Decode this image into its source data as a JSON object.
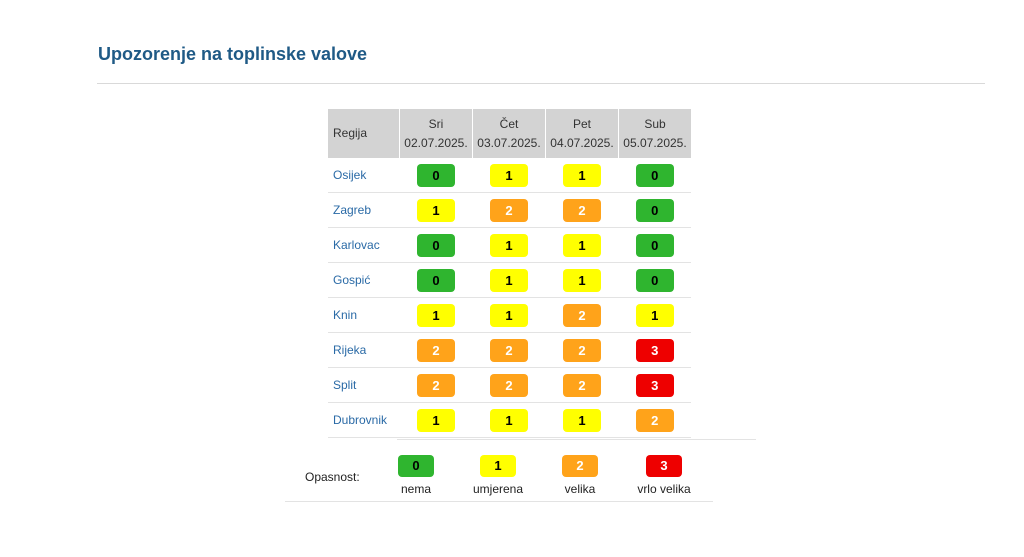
{
  "title": "Upozorenje na toplinske valove",
  "table": {
    "region_header": "Regija",
    "days": [
      {
        "day": "Sri",
        "date": "02.07.2025."
      },
      {
        "day": "Čet",
        "date": "03.07.2025."
      },
      {
        "day": "Pet",
        "date": "04.07.2025."
      },
      {
        "day": "Sub",
        "date": "05.07.2025."
      }
    ],
    "rows": [
      {
        "region": "Osijek",
        "levels": [
          "0",
          "1",
          "1",
          "0"
        ]
      },
      {
        "region": "Zagreb",
        "levels": [
          "1",
          "2",
          "2",
          "0"
        ]
      },
      {
        "region": "Karlovac",
        "levels": [
          "0",
          "1",
          "1",
          "0"
        ]
      },
      {
        "region": "Gospić",
        "levels": [
          "0",
          "1",
          "1",
          "0"
        ]
      },
      {
        "region": "Knin",
        "levels": [
          "1",
          "1",
          "2",
          "1"
        ]
      },
      {
        "region": "Rijeka",
        "levels": [
          "2",
          "2",
          "2",
          "3"
        ]
      },
      {
        "region": "Split",
        "levels": [
          "2",
          "2",
          "2",
          "3"
        ]
      },
      {
        "region": "Dubrovnik",
        "levels": [
          "1",
          "1",
          "1",
          "2"
        ]
      }
    ]
  },
  "legend": {
    "label": "Opasnost:",
    "items": [
      {
        "level": "0",
        "text": "nema"
      },
      {
        "level": "1",
        "text": "umjerena"
      },
      {
        "level": "2",
        "text": "velika"
      },
      {
        "level": "3",
        "text": "vrlo velika"
      }
    ]
  },
  "colors": {
    "level_0": "#2fb52f",
    "level_1": "#ffff00",
    "level_2": "#ffa31a",
    "level_3": "#ee0000",
    "title": "#1f5a86",
    "region_link": "#2a6aa6"
  }
}
